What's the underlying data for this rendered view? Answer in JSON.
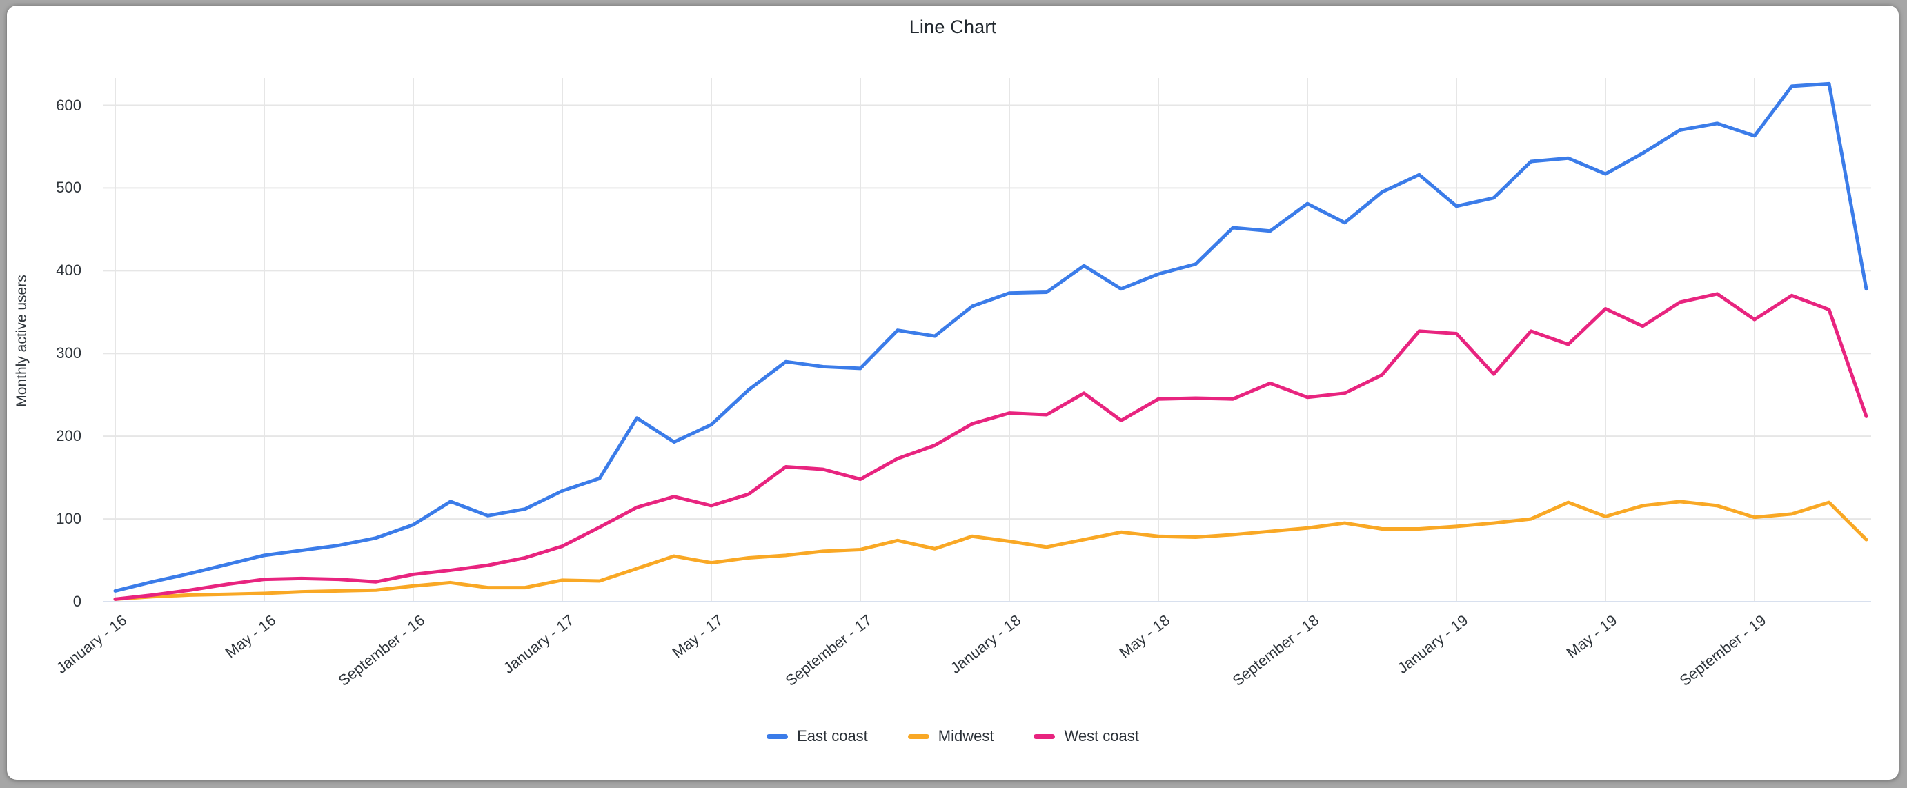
{
  "window": {
    "outer_background": "#a6a6a6",
    "card_background": "#ffffff"
  },
  "chart_data": {
    "type": "line",
    "title": "Line Chart",
    "xlabel": "",
    "ylabel": "Monthly active users",
    "y_ticks": [
      "0",
      "100",
      "200",
      "300",
      "400",
      "500",
      "600"
    ],
    "y_tick_values": [
      0,
      100,
      200,
      300,
      400,
      500,
      600
    ],
    "ylim": [
      0,
      632
    ],
    "grid": true,
    "legend_position": "bottom",
    "x_unit": "month",
    "x_range_months": 48,
    "x_tick_labels": [
      "January - 16",
      "May - 16",
      "September - 16",
      "January - 17",
      "May - 17",
      "September - 17",
      "January - 18",
      "May - 18",
      "September - 18",
      "January - 19",
      "May - 19",
      "September - 19"
    ],
    "x_tick_month_indices": [
      0,
      4,
      8,
      12,
      16,
      20,
      24,
      28,
      32,
      36,
      40,
      44
    ],
    "series": [
      {
        "name": "East coast",
        "color": "#3b7ce9",
        "values": [
          13,
          24,
          34,
          45,
          56,
          62,
          68,
          77,
          93,
          121,
          104,
          112,
          134,
          149,
          222,
          193,
          214,
          256,
          290,
          284,
          282,
          328,
          321,
          357,
          373,
          374,
          406,
          378,
          396,
          408,
          452,
          448,
          481,
          458,
          495,
          516,
          478,
          488,
          532,
          536,
          517,
          542,
          570,
          578,
          563,
          623,
          626,
          378
        ]
      },
      {
        "name": "Midwest",
        "color": "#f9a825",
        "values": [
          3,
          6,
          8,
          9,
          10,
          12,
          13,
          14,
          19,
          23,
          17,
          17,
          26,
          25,
          40,
          55,
          47,
          53,
          56,
          61,
          63,
          74,
          64,
          79,
          73,
          66,
          75,
          84,
          79,
          78,
          81,
          85,
          89,
          95,
          88,
          88,
          91,
          95,
          100,
          120,
          103,
          116,
          121,
          116,
          102,
          106,
          120,
          75
        ]
      },
      {
        "name": "West coast",
        "color": "#e8247f",
        "values": [
          3,
          8,
          14,
          21,
          27,
          28,
          27,
          24,
          33,
          38,
          44,
          53,
          67,
          90,
          114,
          127,
          116,
          130,
          163,
          160,
          148,
          173,
          189,
          215,
          228,
          226,
          252,
          219,
          245,
          246,
          245,
          264,
          247,
          252,
          274,
          327,
          324,
          275,
          327,
          311,
          354,
          333,
          362,
          372,
          341,
          370,
          353,
          224
        ]
      }
    ],
    "style": {
      "grid_color": "#e6e6e6",
      "baseline_color": "#d8e0ee",
      "line_width": 5
    }
  }
}
